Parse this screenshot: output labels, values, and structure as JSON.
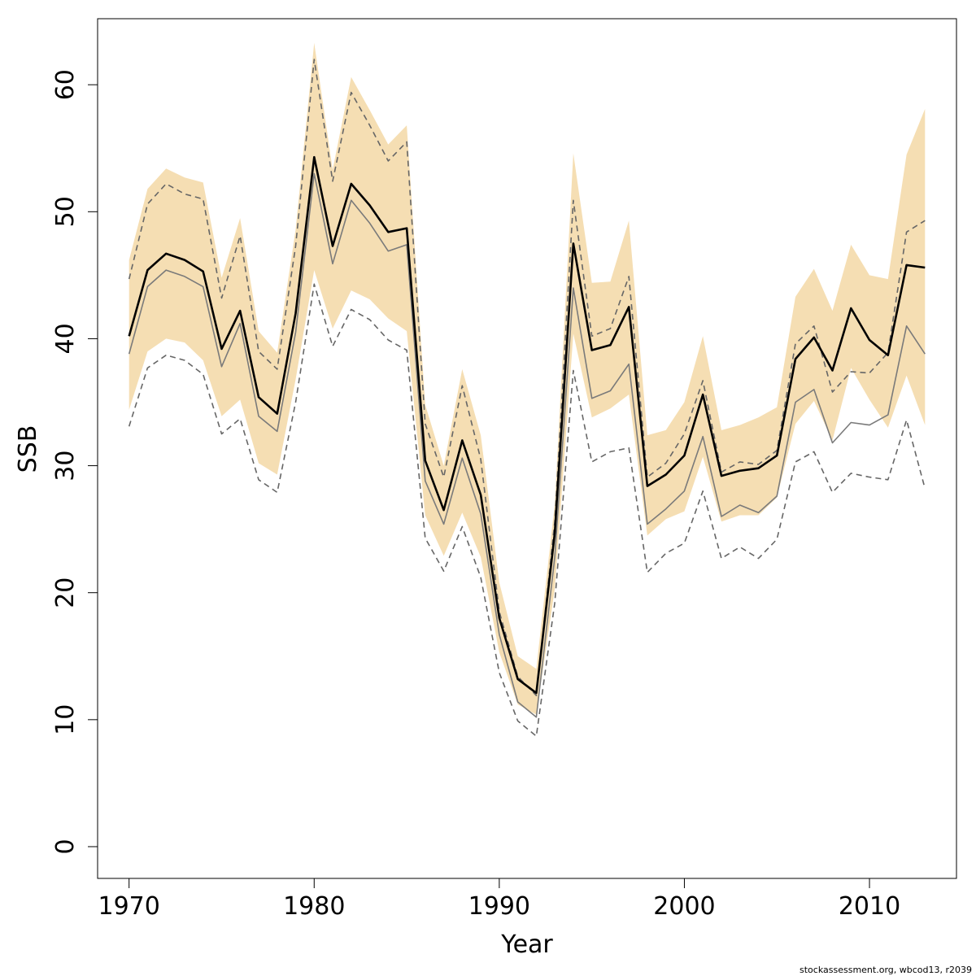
{
  "chart_data": {
    "type": "line",
    "xlabel": "Year",
    "ylabel": "SSB",
    "xlim": [
      1968.3,
      2014.7
    ],
    "ylim": [
      -2.5,
      65.2
    ],
    "x_ticks": [
      1970,
      1980,
      1990,
      2000,
      2010
    ],
    "y_ticks": [
      0,
      10,
      20,
      30,
      40,
      50,
      60
    ],
    "grid": false,
    "band_color": "#f5deb3",
    "footnote": "stockassessment.org, wbcod13, r2039",
    "x": [
      1970,
      1971,
      1972,
      1973,
      1974,
      1975,
      1976,
      1977,
      1978,
      1979,
      1980,
      1981,
      1982,
      1983,
      1984,
      1985,
      1986,
      1987,
      1988,
      1989,
      1990,
      1991,
      1992,
      1993,
      1994,
      1995,
      1996,
      1997,
      1998,
      1999,
      2000,
      2001,
      2002,
      2003,
      2004,
      2005,
      2006,
      2007,
      2008,
      2009,
      2010,
      2011,
      2012,
      2013
    ],
    "band_upper": [
      46.2,
      51.8,
      53.4,
      52.7,
      52.3,
      44.8,
      49.5,
      40.6,
      38.9,
      48.6,
      63.3,
      53.3,
      60.6,
      58.0,
      55.3,
      56.8,
      34.8,
      30.0,
      37.6,
      32.4,
      20.8,
      15.0,
      14.0,
      27.0,
      54.6,
      44.4,
      44.5,
      49.3,
      32.4,
      32.8,
      35.0,
      40.2,
      32.8,
      33.2,
      33.8,
      34.6,
      43.3,
      45.5,
      42.2,
      47.4,
      45.0,
      44.7,
      54.5,
      58.1
    ],
    "band_lower": [
      34.4,
      39.0,
      40.0,
      39.7,
      38.3,
      33.9,
      35.2,
      30.2,
      29.3,
      36.8,
      45.4,
      40.8,
      43.8,
      43.1,
      41.6,
      40.6,
      26.1,
      22.9,
      26.3,
      22.8,
      15.3,
      11.2,
      10.4,
      20.3,
      40.4,
      33.8,
      34.5,
      35.6,
      24.5,
      25.8,
      26.4,
      30.7,
      25.6,
      26.1,
      26.1,
      27.5,
      33.3,
      35.1,
      32.0,
      37.7,
      35.2,
      33.0,
      37.1,
      33.2
    ],
    "series": [
      {
        "style": "black-solid",
        "values": [
          40.2,
          45.4,
          46.7,
          46.2,
          45.3,
          39.2,
          42.2,
          35.4,
          34.1,
          42.0,
          54.3,
          47.3,
          52.2,
          50.5,
          48.4,
          48.7,
          30.4,
          26.5,
          32.0,
          27.7,
          18.0,
          13.2,
          12.1,
          24.7,
          47.5,
          39.1,
          39.5,
          42.5,
          28.4,
          29.3,
          30.8,
          35.6,
          29.2,
          29.6,
          29.8,
          30.8,
          38.4,
          40.1,
          37.5,
          42.4,
          39.9,
          38.7,
          45.8,
          45.6
        ]
      },
      {
        "style": "gray-solid",
        "values": [
          38.8,
          44.1,
          45.4,
          44.9,
          44.1,
          37.8,
          41.2,
          33.9,
          32.7,
          40.5,
          53.0,
          45.9,
          50.9,
          49.1,
          46.9,
          47.4,
          28.8,
          25.4,
          30.6,
          26.2,
          16.7,
          11.4,
          10.2,
          22.8,
          44.0,
          35.3,
          35.9,
          38.0,
          25.4,
          26.6,
          28.0,
          32.3,
          26.0,
          26.9,
          26.3,
          27.6,
          35.0,
          36.0,
          31.8,
          33.4,
          33.2,
          34.0,
          41.0,
          38.8
        ]
      },
      {
        "style": "gray-dashed-upper",
        "values": [
          44.7,
          50.6,
          52.2,
          51.4,
          51.0,
          43.2,
          48.1,
          39.0,
          37.6,
          47.3,
          62.0,
          52.4,
          59.4,
          56.8,
          54.0,
          55.5,
          33.3,
          29.1,
          36.3,
          30.5,
          18.5,
          13.4,
          11.9,
          25.6,
          50.9,
          40.2,
          40.8,
          44.9,
          29.1,
          30.2,
          32.5,
          36.7,
          29.5,
          30.3,
          30.1,
          31.2,
          39.6,
          41.0,
          35.8,
          37.4,
          37.3,
          38.9,
          48.4,
          49.3
        ]
      },
      {
        "style": "gray-dashed-lower",
        "values": [
          33.1,
          37.7,
          38.7,
          38.3,
          37.2,
          32.5,
          33.7,
          28.9,
          27.9,
          35.0,
          44.3,
          39.4,
          42.3,
          41.5,
          39.9,
          39.1,
          24.3,
          21.7,
          25.2,
          21.2,
          13.7,
          9.9,
          8.7,
          19.2,
          37.5,
          30.3,
          31.1,
          31.4,
          21.6,
          23.1,
          23.9,
          28.0,
          22.7,
          23.6,
          22.7,
          24.2,
          30.3,
          31.1,
          27.9,
          29.4,
          29.1,
          28.9,
          33.6,
          28.2
        ]
      }
    ]
  }
}
